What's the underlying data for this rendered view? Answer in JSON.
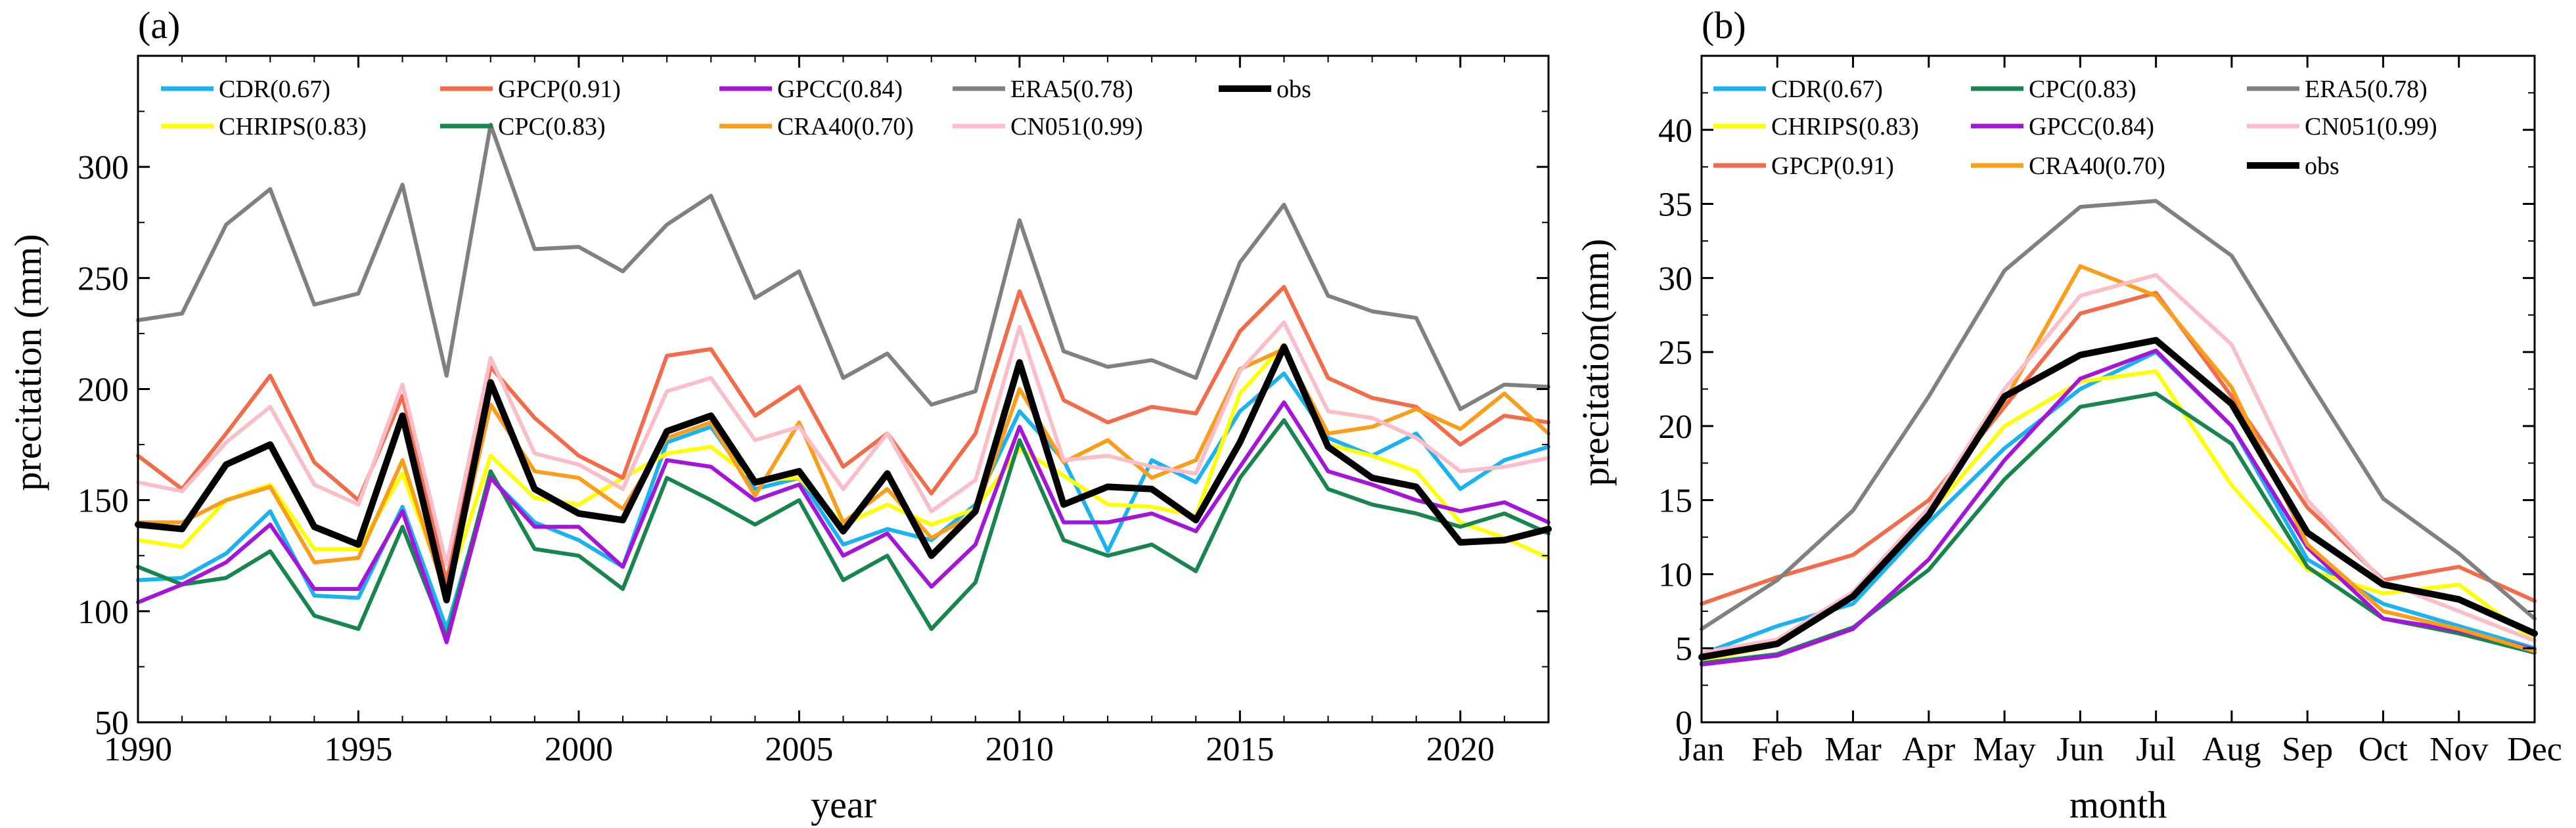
{
  "chart_data": [
    {
      "type": "line",
      "panel_label": "(a)",
      "xlabel": "year",
      "ylabel": "precitation (mm)",
      "xlim": [
        1990,
        2022
      ],
      "ylim": [
        50,
        350
      ],
      "xticks": [
        1990,
        1995,
        2000,
        2005,
        2010,
        2015,
        2020
      ],
      "yticks": [
        50,
        100,
        150,
        200,
        250,
        300
      ],
      "legend_position": "top",
      "x": [
        1990,
        1991,
        1992,
        1993,
        1994,
        1995,
        1996,
        1997,
        1998,
        1999,
        2000,
        2001,
        2002,
        2003,
        2004,
        2005,
        2006,
        2007,
        2008,
        2009,
        2010,
        2011,
        2012,
        2013,
        2014,
        2015,
        2016,
        2017,
        2018,
        2019,
        2020,
        2021,
        2022
      ],
      "series": [
        {
          "name": "CDR",
          "label": "CDR(0.67)",
          "color": "#1ab2f0",
          "values": [
            114,
            115,
            126,
            145,
            107,
            106,
            147,
            92,
            160,
            140,
            132,
            120,
            176,
            183,
            155,
            160,
            130,
            137,
            132,
            148,
            190,
            168,
            127,
            168,
            158,
            190,
            207,
            178,
            170,
            180,
            155,
            168,
            174
          ]
        },
        {
          "name": "CHRIPS",
          "label": "CHRIPS(0.83)",
          "color": "#ffff00",
          "values": [
            132,
            129,
            150,
            157,
            128,
            128,
            162,
            109,
            170,
            151,
            148,
            160,
            171,
            174,
            159,
            160,
            139,
            148,
            139,
            146,
            173,
            161,
            148,
            147,
            143,
            198,
            220,
            175,
            170,
            163,
            140,
            133,
            124
          ]
        },
        {
          "name": "GPCP",
          "label": "GPCP(0.91)",
          "color": "#f26b4a",
          "values": [
            170,
            155,
            180,
            206,
            167,
            150,
            197,
            113,
            210,
            187,
            170,
            160,
            215,
            218,
            188,
            201,
            165,
            180,
            153,
            180,
            244,
            195,
            185,
            192,
            189,
            226,
            246,
            205,
            196,
            192,
            175,
            188,
            185
          ]
        },
        {
          "name": "CPC",
          "label": "CPC(0.83)",
          "color": "#17854d",
          "values": [
            120,
            112,
            115,
            127,
            98,
            92,
            138,
            88,
            163,
            128,
            125,
            110,
            160,
            150,
            139,
            150,
            114,
            125,
            92,
            113,
            177,
            132,
            125,
            130,
            118,
            160,
            186,
            155,
            148,
            144,
            138,
            144,
            135
          ]
        },
        {
          "name": "GPCC",
          "label": "GPCC(0.84)",
          "color": "#a316d9",
          "values": [
            104,
            112,
            122,
            139,
            110,
            110,
            145,
            86,
            160,
            138,
            138,
            120,
            168,
            165,
            150,
            157,
            125,
            135,
            111,
            130,
            183,
            140,
            140,
            144,
            136,
            165,
            194,
            163,
            157,
            150,
            145,
            149,
            140
          ]
        },
        {
          "name": "CRA40",
          "label": "CRA40(0.70)",
          "color": "#fa9d1a",
          "values": [
            140,
            140,
            150,
            156,
            122,
            124,
            168,
            106,
            193,
            163,
            160,
            146,
            178,
            185,
            152,
            185,
            140,
            155,
            133,
            144,
            200,
            167,
            177,
            160,
            168,
            209,
            218,
            180,
            183,
            191,
            182,
            198,
            180
          ]
        },
        {
          "name": "ERA5",
          "label": "ERA5(0.78)",
          "color": "#808080",
          "values": [
            231,
            234,
            274,
            290,
            238,
            243,
            292,
            206,
            319,
            263,
            264,
            253,
            274,
            287,
            241,
            253,
            205,
            216,
            193,
            199,
            276,
            217,
            210,
            213,
            205,
            257,
            283,
            242,
            235,
            232,
            191,
            202,
            201
          ]
        },
        {
          "name": "CN051",
          "label": "CN051(0.99)",
          "color": "#fbbec8",
          "values": [
            158,
            154,
            176,
            192,
            157,
            148,
            202,
            121,
            214,
            171,
            166,
            155,
            199,
            205,
            177,
            183,
            155,
            180,
            145,
            159,
            228,
            168,
            170,
            165,
            162,
            208,
            230,
            190,
            187,
            178,
            163,
            165,
            169
          ]
        },
        {
          "name": "obs",
          "label": "obs",
          "color": "#000000",
          "values": [
            139,
            137,
            166,
            175,
            138,
            130,
            188,
            105,
            203,
            155,
            144,
            141,
            181,
            188,
            158,
            163,
            136,
            162,
            125,
            145,
            212,
            148,
            156,
            155,
            141,
            176,
            219,
            174,
            160,
            156,
            131,
            132,
            137
          ]
        }
      ],
      "legend_order": [
        "CDR",
        "GPCP",
        "GPCC",
        "ERA5",
        "obs",
        "CHRIPS",
        "CPC",
        "CRA40",
        "CN051"
      ]
    },
    {
      "type": "line",
      "panel_label": "(b)",
      "xlabel": "month",
      "ylabel": "precitation(mm)",
      "categories": [
        "Jan",
        "Feb",
        "Mar",
        "Apr",
        "May",
        "Jun",
        "Jul",
        "Aug",
        "Sep",
        "Oct",
        "Nov",
        "Dec"
      ],
      "ylim": [
        0,
        45
      ],
      "yticks": [
        0,
        5,
        10,
        15,
        20,
        25,
        30,
        35,
        40
      ],
      "legend_position": "top",
      "series": [
        {
          "name": "CDR",
          "label": "CDR(0.67)",
          "color": "#1ab2f0",
          "values": [
            4.6,
            6.5,
            8.0,
            13.5,
            18.5,
            22.5,
            25.0,
            20.0,
            11.0,
            8.0,
            6.5,
            5.0
          ]
        },
        {
          "name": "CHRIPS",
          "label": "CHRIPS(0.83)",
          "color": "#ffff00",
          "values": [
            4.2,
            5.2,
            8.5,
            14.0,
            20.0,
            23.0,
            23.7,
            16.0,
            10.3,
            8.7,
            9.3,
            5.5
          ]
        },
        {
          "name": "GPCP",
          "label": "GPCP(0.91)",
          "color": "#f26b4a",
          "values": [
            8.0,
            9.8,
            11.3,
            15.0,
            21.3,
            27.6,
            29.0,
            22.0,
            14.5,
            9.6,
            10.5,
            8.2
          ]
        },
        {
          "name": "CPC",
          "label": "CPC(0.83)",
          "color": "#17854d",
          "values": [
            4.0,
            4.6,
            6.4,
            10.3,
            16.4,
            21.3,
            22.2,
            18.8,
            10.5,
            7.0,
            6.0,
            4.7
          ]
        },
        {
          "name": "GPCC",
          "label": "GPCC(0.84)",
          "color": "#a316d9",
          "values": [
            3.9,
            4.5,
            6.3,
            11.0,
            17.7,
            23.2,
            25.1,
            20.0,
            11.8,
            7.0,
            6.2,
            4.9
          ]
        },
        {
          "name": "CRA40",
          "label": "CRA40(0.70)",
          "color": "#fa9d1a",
          "values": [
            4.5,
            5.5,
            8.4,
            14.5,
            21.7,
            30.8,
            28.8,
            22.6,
            12.0,
            7.5,
            6.3,
            4.8
          ]
        },
        {
          "name": "ERA5",
          "label": "ERA5(0.78)",
          "color": "#808080",
          "values": [
            6.3,
            9.6,
            14.3,
            22.0,
            30.5,
            34.8,
            35.2,
            31.5,
            23.2,
            15.1,
            11.4,
            7.0
          ]
        },
        {
          "name": "CN051",
          "label": "CN051(0.99)",
          "color": "#fbbec8",
          "values": [
            4.7,
            5.6,
            8.8,
            14.5,
            22.5,
            28.8,
            30.2,
            25.5,
            15.0,
            9.5,
            7.5,
            5.5
          ]
        },
        {
          "name": "obs",
          "label": "obs",
          "color": "#000000",
          "values": [
            4.4,
            5.3,
            8.5,
            14.0,
            22.0,
            24.8,
            25.8,
            21.5,
            12.8,
            9.3,
            8.3,
            6.0
          ]
        }
      ],
      "legend_order": [
        "CDR",
        "CPC",
        "ERA5",
        "CHRIPS",
        "GPCC",
        "CN051",
        "GPCP",
        "CRA40",
        "obs"
      ]
    }
  ]
}
